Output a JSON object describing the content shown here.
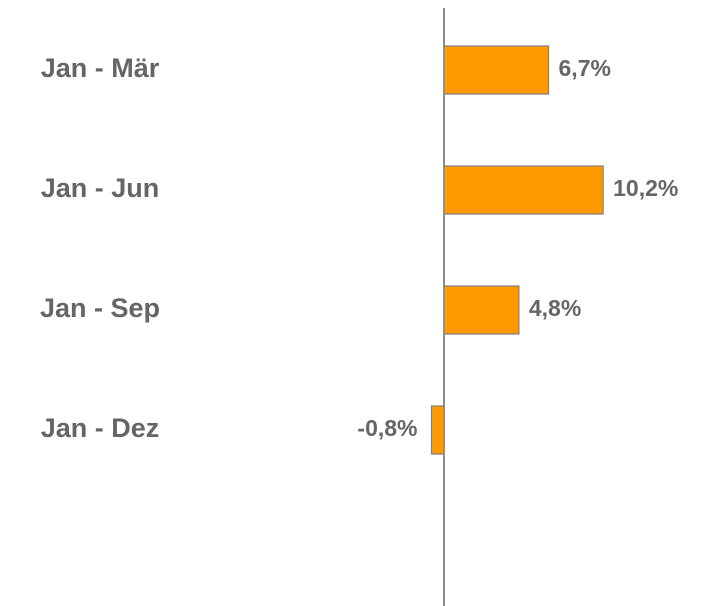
{
  "chart_data": {
    "type": "hbar",
    "categories": [
      "Jan - Mär",
      "Jan - Jun",
      "Jan - Sep",
      "Jan - Dez"
    ],
    "values": [
      6.7,
      10.2,
      4.8,
      -0.8
    ],
    "value_labels": [
      "6,7%",
      "10,2%",
      "4,8%",
      "-0,8%"
    ],
    "color": "#ff9900"
  }
}
